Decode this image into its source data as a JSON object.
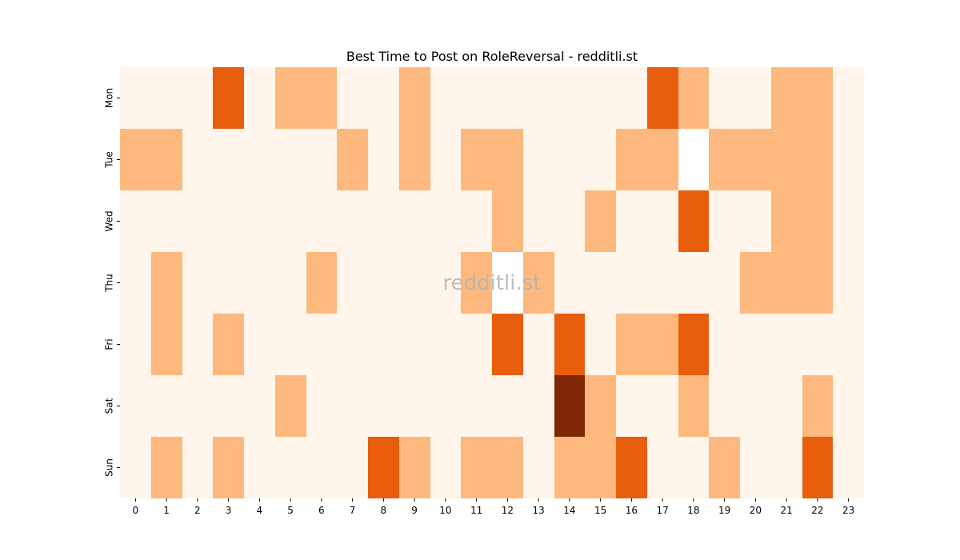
{
  "chart_data": {
    "type": "heatmap",
    "title": "Best Time to Post on RoleReversal - redditli.st",
    "watermark": "redditli.st",
    "x_labels": [
      "0",
      "1",
      "2",
      "3",
      "4",
      "5",
      "6",
      "7",
      "8",
      "9",
      "10",
      "11",
      "12",
      "13",
      "14",
      "15",
      "16",
      "17",
      "18",
      "19",
      "20",
      "21",
      "22",
      "23"
    ],
    "y_labels": [
      "Mon",
      "Tue",
      "Wed",
      "Thu",
      "Fri",
      "Sat",
      "Sun"
    ],
    "values": [
      [
        0,
        0,
        0,
        2,
        0,
        1,
        1,
        0,
        0,
        1,
        0,
        0,
        0,
        0,
        0,
        0,
        0,
        2,
        1,
        0,
        0,
        1,
        1,
        0
      ],
      [
        1,
        1,
        0,
        0,
        0,
        0,
        0,
        1,
        0,
        1,
        0,
        1,
        1,
        0,
        0,
        0,
        1,
        1,
        0,
        1,
        1,
        1,
        1,
        0
      ],
      [
        0,
        0,
        0,
        0,
        0,
        0,
        0,
        0,
        0,
        0,
        0,
        0,
        1,
        0,
        0,
        1,
        0,
        0,
        2,
        0,
        0,
        1,
        1,
        0
      ],
      [
        0,
        1,
        0,
        0,
        0,
        0,
        1,
        0,
        0,
        0,
        0,
        1,
        0,
        1,
        0,
        0,
        0,
        0,
        0,
        0,
        1,
        1,
        1,
        0
      ],
      [
        0,
        1,
        0,
        1,
        0,
        0,
        0,
        0,
        0,
        0,
        0,
        0,
        2,
        0,
        2,
        0,
        1,
        1,
        2,
        0,
        0,
        0,
        0,
        0
      ],
      [
        0,
        0,
        0,
        0,
        0,
        1,
        0,
        0,
        0,
        0,
        0,
        0,
        0,
        0,
        3,
        1,
        0,
        0,
        1,
        0,
        0,
        0,
        1,
        0
      ],
      [
        0,
        1,
        0,
        1,
        0,
        0,
        0,
        0,
        2,
        1,
        0,
        1,
        1,
        0,
        1,
        1,
        2,
        0,
        0,
        1,
        0,
        0,
        2,
        0
      ]
    ],
    "colors": [
      "#fff5eb",
      "#fdb97d",
      "#e95e0d",
      "#7f2704"
    ],
    "blank_cell_color": "#ffffff",
    "blank_cells": [
      [
        1,
        18
      ],
      [
        3,
        12
      ]
    ],
    "colorbar": false,
    "grid": false
  }
}
